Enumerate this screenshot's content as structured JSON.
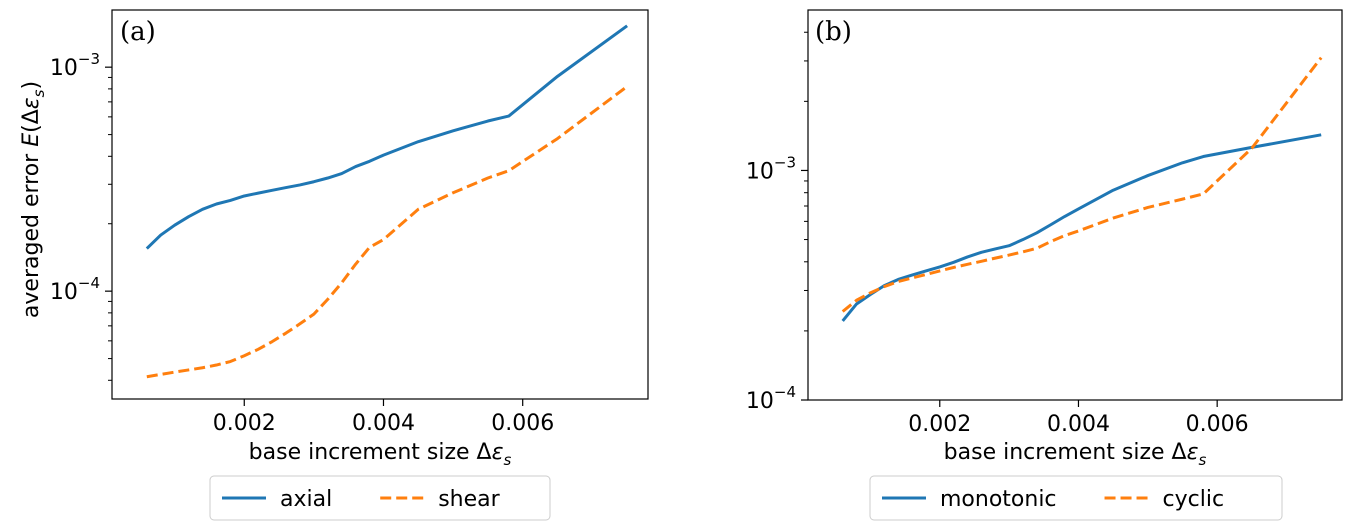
{
  "chart_data": [
    {
      "type": "line",
      "panel_label": "(a)",
      "title": "",
      "xlabel": "base increment size Δε_s",
      "xlabel_parts": {
        "main": "base increment size Δ",
        "var": "ε",
        "sub": "s"
      },
      "ylabel": "averaged error E(Δε_s)",
      "ylabel_parts": {
        "main": "averaged error ",
        "func": "E",
        "open": "(Δ",
        "var": "ε",
        "sub": "s",
        "close": ")"
      },
      "yscale": "log",
      "xlim": [
        0.0001,
        0.0078
      ],
      "ylim": [
        3.3e-05,
        0.0018
      ],
      "x_ticks": [
        0.002,
        0.004,
        0.006
      ],
      "x_tick_labels": [
        "0.002",
        "0.004",
        "0.006"
      ],
      "y_major_ticks": [
        0.0001,
        0.001
      ],
      "y_tick_labels": [
        {
          "base": "10",
          "exp": "−4"
        },
        {
          "base": "10",
          "exp": "−3"
        }
      ],
      "legend_position": "below",
      "series": [
        {
          "name": "axial",
          "color": "#1f77b4",
          "style": "solid",
          "x": [
            0.0006,
            0.0008,
            0.001,
            0.0012,
            0.0014,
            0.0016,
            0.0018,
            0.002,
            0.0022,
            0.0024,
            0.0026,
            0.0028,
            0.003,
            0.0032,
            0.0034,
            0.0036,
            0.0038,
            0.004,
            0.0045,
            0.005,
            0.0055,
            0.0058,
            0.0065,
            0.0075
          ],
          "values": [
            0.000155,
            0.000178,
            0.000197,
            0.000215,
            0.000232,
            0.000245,
            0.000254,
            0.000266,
            0.000274,
            0.000282,
            0.00029,
            0.000298,
            0.000308,
            0.00032,
            0.000335,
            0.00036,
            0.00038,
            0.000405,
            0.000465,
            0.00052,
            0.000575,
            0.000605,
            0.00091,
            0.00153
          ]
        },
        {
          "name": "shear",
          "color": "#ff7f0e",
          "style": "dashed",
          "x": [
            0.0006,
            0.0008,
            0.001,
            0.0012,
            0.0014,
            0.0016,
            0.0018,
            0.002,
            0.0022,
            0.0024,
            0.0026,
            0.0028,
            0.003,
            0.0032,
            0.0034,
            0.0036,
            0.0038,
            0.004,
            0.0045,
            0.005,
            0.0055,
            0.0058,
            0.0065,
            0.0075
          ],
          "values": [
            4.15e-05,
            4.25e-05,
            4.35e-05,
            4.45e-05,
            4.55e-05,
            4.68e-05,
            4.85e-05,
            5.15e-05,
            5.5e-05,
            5.95e-05,
            6.5e-05,
            7.15e-05,
            7.9e-05,
            9.2e-05,
            0.000109,
            0.000132,
            0.000157,
            0.00017,
            0.000232,
            0.000275,
            0.00032,
            0.000345,
            0.00048,
            0.00082
          ]
        }
      ]
    },
    {
      "type": "line",
      "panel_label": "(b)",
      "title": "",
      "xlabel": "base increment size Δε_s",
      "xlabel_parts": {
        "main": "base increment size Δ",
        "var": "ε",
        "sub": "s"
      },
      "ylabel": "",
      "yscale": "log",
      "xlim": [
        0.0001,
        0.0078
      ],
      "ylim": [
        0.0001,
        0.005
      ],
      "x_ticks": [
        0.002,
        0.004,
        0.006
      ],
      "x_tick_labels": [
        "0.002",
        "0.004",
        "0.006"
      ],
      "y_major_ticks": [
        0.0001,
        0.001
      ],
      "y_tick_labels": [
        {
          "base": "10",
          "exp": "−4"
        },
        {
          "base": "10",
          "exp": "−3"
        }
      ],
      "legend_position": "below",
      "series": [
        {
          "name": "monotonic",
          "color": "#1f77b4",
          "style": "solid",
          "x": [
            0.0006,
            0.0008,
            0.001,
            0.0012,
            0.0014,
            0.0016,
            0.0018,
            0.002,
            0.0022,
            0.0024,
            0.0026,
            0.0028,
            0.003,
            0.0032,
            0.0034,
            0.0036,
            0.0038,
            0.004,
            0.0045,
            0.005,
            0.0055,
            0.0058,
            0.0065,
            0.0075
          ],
          "values": [
            0.000221,
            0.000262,
            0.000288,
            0.000315,
            0.000335,
            0.00035,
            0.000365,
            0.00038,
            0.000398,
            0.00042,
            0.00044,
            0.000455,
            0.00047,
            0.0005,
            0.000535,
            0.00058,
            0.00063,
            0.00068,
            0.00082,
            0.00095,
            0.00108,
            0.00115,
            0.00126,
            0.00143
          ]
        },
        {
          "name": "cyclic",
          "color": "#ff7f0e",
          "style": "dashed",
          "x": [
            0.0006,
            0.0008,
            0.001,
            0.0012,
            0.0014,
            0.0016,
            0.0018,
            0.002,
            0.0022,
            0.0024,
            0.0026,
            0.0028,
            0.003,
            0.0032,
            0.0034,
            0.0036,
            0.0038,
            0.004,
            0.0045,
            0.005,
            0.0055,
            0.0058,
            0.0065,
            0.0075
          ],
          "values": [
            0.000243,
            0.000272,
            0.000293,
            0.000312,
            0.000328,
            0.00034,
            0.000352,
            0.000365,
            0.000378,
            0.00039,
            0.000402,
            0.000415,
            0.000428,
            0.000442,
            0.000458,
            0.00049,
            0.00052,
            0.000545,
            0.00062,
            0.00069,
            0.00075,
            0.00079,
            0.00125,
            0.0031
          ]
        }
      ]
    }
  ]
}
